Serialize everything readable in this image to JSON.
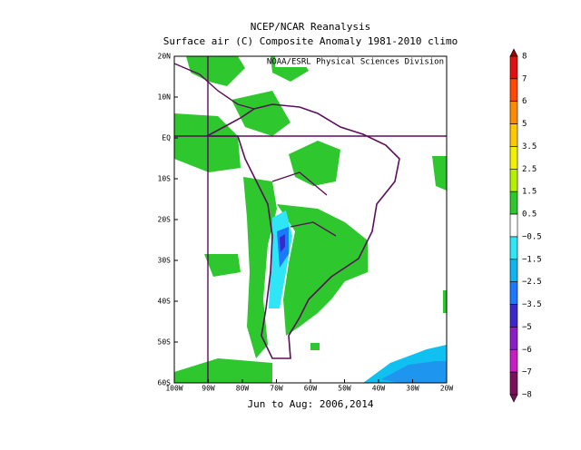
{
  "title": "NCEP/NCAR Reanalysis",
  "subtitle": "Surface air (C) Composite Anomaly 1981-2010 climo",
  "source": "NOAA/ESRL Physical Sciences Division",
  "lat_labels": [
    "20N",
    "10N",
    "EQ",
    "10S",
    "20S",
    "30S",
    "40S",
    "50S",
    "60S"
  ],
  "lon_labels": [
    "100W",
    "90W",
    "80W",
    "70W",
    "60W",
    "50W",
    "40W",
    "30W",
    "20W"
  ],
  "colorbar_labels": [
    "8",
    "7",
    "6",
    "5",
    "3.5",
    "2.5",
    "1.5",
    "0.5",
    "−0.5",
    "−1.5",
    "−2.5",
    "−3.5",
    "−5",
    "−6",
    "−7",
    "−8"
  ],
  "caption": "Jun to Aug: 2006,2014"
}
